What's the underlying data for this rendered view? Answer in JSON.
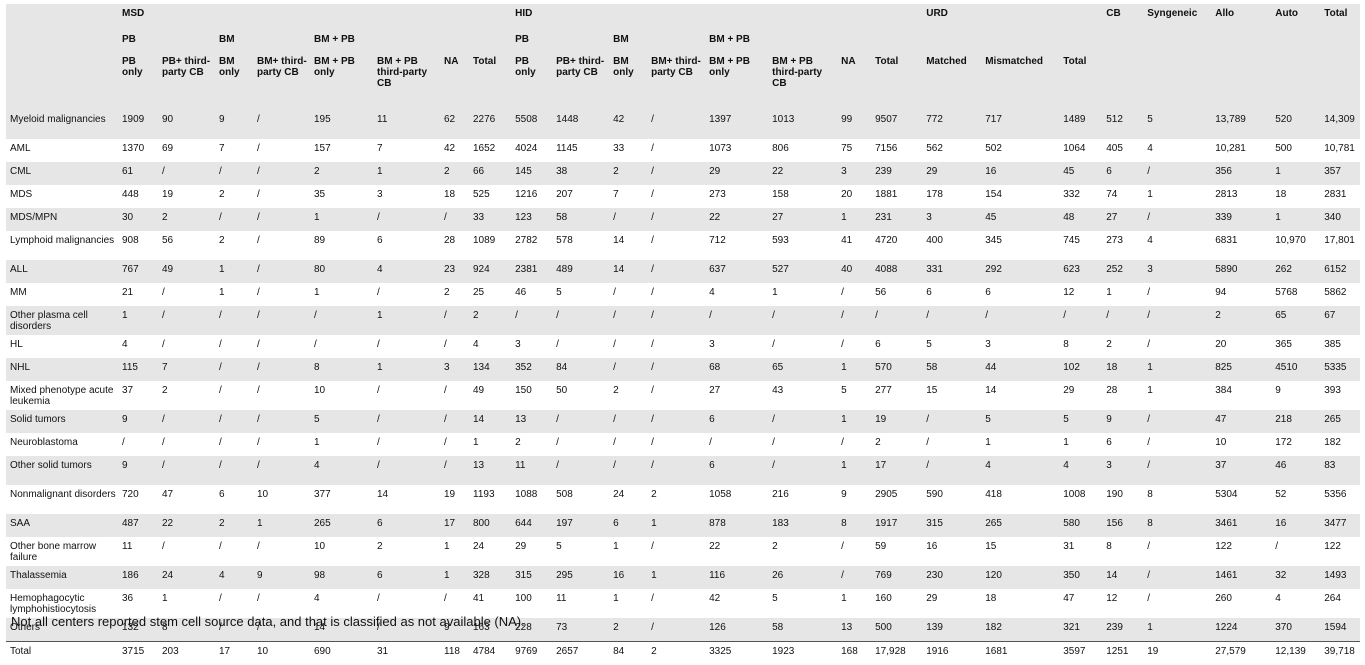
{
  "header": {
    "groups": {
      "msd": "MSD",
      "hid": "HID",
      "urd": "URD",
      "cb": "CB",
      "syngeneic": "Syngeneic",
      "allo": "Allo",
      "auto": "Auto",
      "total": "Total"
    },
    "subgroups": {
      "msd_pb": "PB",
      "msd_bm": "BM",
      "msd_bmpb": "BM + PB",
      "hid_pb": "PB",
      "hid_bm": "BM",
      "hid_bmpb": "BM + PB"
    },
    "columns": [
      "PB only",
      "PB+ third-party CB",
      "BM only",
      "BM+ third-party CB",
      "BM + PB only",
      "BM + PB third-party CB",
      "NA",
      "Total",
      "PB only",
      "PB+ third-party CB",
      "BM only",
      "BM+ third-party CB",
      "BM + PB only",
      "BM + PB third-party CB",
      "NA",
      "Total",
      "Matched",
      "Mismatched",
      "Total"
    ]
  },
  "rows": [
    {
      "label": "Myeloid malignancies",
      "values": [
        "1909",
        "90",
        "9",
        "/",
        "195",
        "11",
        "62",
        "2276",
        "5508",
        "1448",
        "42",
        "/",
        "1397",
        "1013",
        "99",
        "9507",
        "772",
        "717",
        "1489",
        "512",
        "5",
        "13,789",
        "520",
        "14,309"
      ]
    },
    {
      "label": "AML",
      "values": [
        "1370",
        "69",
        "7",
        "/",
        "157",
        "7",
        "42",
        "1652",
        "4024",
        "1145",
        "33",
        "/",
        "1073",
        "806",
        "75",
        "7156",
        "562",
        "502",
        "1064",
        "405",
        "4",
        "10,281",
        "500",
        "10,781"
      ]
    },
    {
      "label": "CML",
      "values": [
        "61",
        "/",
        "/",
        "/",
        "2",
        "1",
        "2",
        "66",
        "145",
        "38",
        "2",
        "/",
        "29",
        "22",
        "3",
        "239",
        "29",
        "16",
        "45",
        "6",
        "/",
        "356",
        "1",
        "357"
      ]
    },
    {
      "label": "MDS",
      "values": [
        "448",
        "19",
        "2",
        "/",
        "35",
        "3",
        "18",
        "525",
        "1216",
        "207",
        "7",
        "/",
        "273",
        "158",
        "20",
        "1881",
        "178",
        "154",
        "332",
        "74",
        "1",
        "2813",
        "18",
        "2831"
      ]
    },
    {
      "label": "MDS/MPN",
      "values": [
        "30",
        "2",
        "/",
        "/",
        "1",
        "/",
        "/",
        "33",
        "123",
        "58",
        "/",
        "/",
        "22",
        "27",
        "1",
        "231",
        "3",
        "45",
        "48",
        "27",
        "/",
        "339",
        "1",
        "340"
      ]
    },
    {
      "label": "Lymphoid malignancies",
      "values": [
        "908",
        "56",
        "2",
        "/",
        "89",
        "6",
        "28",
        "1089",
        "2782",
        "578",
        "14",
        "/",
        "712",
        "593",
        "41",
        "4720",
        "400",
        "345",
        "745",
        "273",
        "4",
        "6831",
        "10,970",
        "17,801"
      ]
    },
    {
      "label": "ALL",
      "values": [
        "767",
        "49",
        "1",
        "/",
        "80",
        "4",
        "23",
        "924",
        "2381",
        "489",
        "14",
        "/",
        "637",
        "527",
        "40",
        "4088",
        "331",
        "292",
        "623",
        "252",
        "3",
        "5890",
        "262",
        "6152"
      ]
    },
    {
      "label": "MM",
      "values": [
        "21",
        "/",
        "1",
        "/",
        "1",
        "/",
        "2",
        "25",
        "46",
        "5",
        "/",
        "/",
        "4",
        "1",
        "/",
        "56",
        "6",
        "6",
        "12",
        "1",
        "/",
        "94",
        "5768",
        "5862"
      ]
    },
    {
      "label": "Other plasma cell disorders",
      "values": [
        "1",
        "/",
        "/",
        "/",
        "/",
        "1",
        "/",
        "2",
        "/",
        "/",
        "/",
        "/",
        "/",
        "/",
        "/",
        "/",
        "/",
        "/",
        "/",
        "/",
        "/",
        "2",
        "65",
        "67"
      ]
    },
    {
      "label": "HL",
      "values": [
        "4",
        "/",
        "/",
        "/",
        "/",
        "/",
        "/",
        "4",
        "3",
        "/",
        "/",
        "/",
        "3",
        "/",
        "/",
        "6",
        "5",
        "3",
        "8",
        "2",
        "/",
        "20",
        "365",
        "385"
      ]
    },
    {
      "label": "NHL",
      "values": [
        "115",
        "7",
        "/",
        "/",
        "8",
        "1",
        "3",
        "134",
        "352",
        "84",
        "/",
        "/",
        "68",
        "65",
        "1",
        "570",
        "58",
        "44",
        "102",
        "18",
        "1",
        "825",
        "4510",
        "5335"
      ]
    },
    {
      "label": "Mixed phenotype acute leukemia",
      "values": [
        "37",
        "2",
        "/",
        "/",
        "10",
        "/",
        "/",
        "49",
        "150",
        "50",
        "2",
        "/",
        "27",
        "43",
        "5",
        "277",
        "15",
        "14",
        "29",
        "28",
        "1",
        "384",
        "9",
        "393"
      ]
    },
    {
      "label": "Solid tumors",
      "values": [
        "9",
        "/",
        "/",
        "/",
        "5",
        "/",
        "/",
        "14",
        "13",
        "/",
        "/",
        "/",
        "6",
        "/",
        "1",
        "19",
        "/",
        "5",
        "5",
        "9",
        "/",
        "47",
        "218",
        "265"
      ]
    },
    {
      "label": "Neuroblastoma",
      "values": [
        "/",
        "/",
        "/",
        "/",
        "1",
        "/",
        "/",
        "1",
        "2",
        "/",
        "/",
        "/",
        "/",
        "/",
        "/",
        "2",
        "/",
        "1",
        "1",
        "6",
        "/",
        "10",
        "172",
        "182"
      ]
    },
    {
      "label": "Other solid tumors",
      "values": [
        "9",
        "/",
        "/",
        "/",
        "4",
        "/",
        "/",
        "13",
        "11",
        "/",
        "/",
        "/",
        "6",
        "/",
        "1",
        "17",
        "/",
        "4",
        "4",
        "3",
        "/",
        "37",
        "46",
        "83"
      ]
    },
    {
      "label": "Nonmalignant disorders",
      "values": [
        "720",
        "47",
        "6",
        "10",
        "377",
        "14",
        "19",
        "1193",
        "1088",
        "508",
        "24",
        "2",
        "1058",
        "216",
        "9",
        "2905",
        "590",
        "418",
        "1008",
        "190",
        "8",
        "5304",
        "52",
        "5356"
      ]
    },
    {
      "label": "SAA",
      "values": [
        "487",
        "22",
        "2",
        "1",
        "265",
        "6",
        "17",
        "800",
        "644",
        "197",
        "6",
        "1",
        "878",
        "183",
        "8",
        "1917",
        "315",
        "265",
        "580",
        "156",
        "8",
        "3461",
        "16",
        "3477"
      ]
    },
    {
      "label": "Other bone marrow failure",
      "values": [
        "11",
        "/",
        "/",
        "/",
        "10",
        "2",
        "1",
        "24",
        "29",
        "5",
        "1",
        "/",
        "22",
        "2",
        "/",
        "59",
        "16",
        "15",
        "31",
        "8",
        "/",
        "122",
        "/",
        "122"
      ]
    },
    {
      "label": "Thalassemia",
      "values": [
        "186",
        "24",
        "4",
        "9",
        "98",
        "6",
        "1",
        "328",
        "315",
        "295",
        "16",
        "1",
        "116",
        "26",
        "/",
        "769",
        "230",
        "120",
        "350",
        "14",
        "/",
        "1461",
        "32",
        "1493"
      ]
    },
    {
      "label": "Hemophagocytic lymphohistiocytosis",
      "values": [
        "36",
        "1",
        "/",
        "/",
        "4",
        "/",
        "/",
        "41",
        "100",
        "11",
        "1",
        "/",
        "42",
        "5",
        "1",
        "160",
        "29",
        "18",
        "47",
        "12",
        "/",
        "260",
        "4",
        "264"
      ]
    },
    {
      "label": "Others",
      "values": [
        "132",
        "8",
        "/",
        "/",
        "14",
        "/",
        "9",
        "163",
        "228",
        "73",
        "2",
        "/",
        "126",
        "58",
        "13",
        "500",
        "139",
        "182",
        "321",
        "239",
        "1",
        "1224",
        "370",
        "1594"
      ]
    },
    {
      "label": "Total",
      "values": [
        "3715",
        "203",
        "17",
        "10",
        "690",
        "31",
        "118",
        "4784",
        "9769",
        "2657",
        "84",
        "2",
        "3325",
        "1923",
        "168",
        "17,928",
        "1916",
        "1681",
        "3597",
        "1251",
        "19",
        "27,579",
        "12,139",
        "39,718"
      ]
    }
  ],
  "footnote": "Not all centers reported stem cell source data, and that is classified as not available (NA)."
}
